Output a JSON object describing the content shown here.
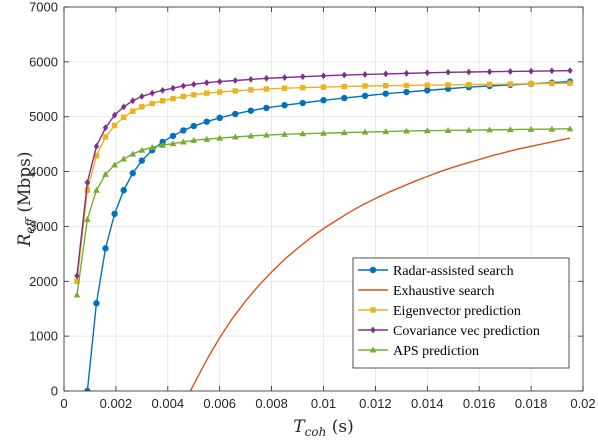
{
  "chart_data": {
    "type": "line",
    "xlabel": {
      "main": "T",
      "sub": "coh",
      "unit": " (s)"
    },
    "ylabel": {
      "main": "R",
      "sub": "eff",
      "unit": " (Mbps)"
    },
    "xlim": [
      0,
      0.02
    ],
    "ylim": [
      0,
      7000
    ],
    "xticks": [
      0,
      0.002,
      0.004,
      0.006,
      0.008,
      0.01,
      0.012,
      0.014,
      0.016,
      0.018,
      0.02
    ],
    "xtick_labels": [
      "0",
      "0.002",
      "0.004",
      "0.006",
      "0.008",
      "0.01",
      "0.012",
      "0.014",
      "0.016",
      "0.018",
      "0.02"
    ],
    "yticks": [
      0,
      1000,
      2000,
      3000,
      4000,
      5000,
      6000,
      7000
    ],
    "ytick_labels": [
      "0",
      "1000",
      "2000",
      "3000",
      "4000",
      "5000",
      "6000",
      "7000"
    ],
    "grid": true,
    "legend_position": "lower-right",
    "series": [
      {
        "name": "Radar-assisted search",
        "color": "#0072BD",
        "marker": "circle",
        "x": [
          0.0009,
          0.00125,
          0.0016,
          0.00195,
          0.0023,
          0.00265,
          0.003,
          0.0034,
          0.0038,
          0.0042,
          0.0046,
          0.005,
          0.0055,
          0.006,
          0.0066,
          0.0072,
          0.0078,
          0.0085,
          0.0092,
          0.01,
          0.0108,
          0.0116,
          0.0124,
          0.0132,
          0.014,
          0.0148,
          0.0156,
          0.0164,
          0.0172,
          0.018,
          0.0188,
          0.0195
        ],
        "y": [
          0,
          1600,
          2600,
          3230,
          3660,
          3970,
          4200,
          4390,
          4540,
          4650,
          4750,
          4830,
          4910,
          4980,
          5050,
          5110,
          5160,
          5210,
          5250,
          5300,
          5340,
          5380,
          5420,
          5450,
          5480,
          5510,
          5540,
          5560,
          5580,
          5600,
          5620,
          5640
        ]
      },
      {
        "name": "Exhaustive search",
        "color": "#D95319",
        "marker": "none",
        "x": [
          0.00487,
          0.0052,
          0.0056,
          0.006,
          0.0065,
          0.007,
          0.0075,
          0.008,
          0.0085,
          0.009,
          0.0095,
          0.01,
          0.0105,
          0.011,
          0.0115,
          0.012,
          0.0125,
          0.013,
          0.0135,
          0.014,
          0.0145,
          0.015,
          0.0155,
          0.016,
          0.0165,
          0.017,
          0.0175,
          0.018,
          0.0185,
          0.019,
          0.0195
        ],
        "y": [
          0,
          300,
          650,
          970,
          1330,
          1640,
          1920,
          2170,
          2400,
          2600,
          2790,
          2960,
          3110,
          3260,
          3390,
          3510,
          3620,
          3720,
          3820,
          3910,
          4000,
          4080,
          4150,
          4220,
          4290,
          4350,
          4410,
          4460,
          4510,
          4560,
          4610
        ]
      },
      {
        "name": "Eigenvector prediction",
        "color": "#EDB120",
        "marker": "square",
        "x": [
          0.0005,
          0.0009,
          0.00125,
          0.0016,
          0.00195,
          0.0023,
          0.00265,
          0.003,
          0.0034,
          0.0038,
          0.0042,
          0.0046,
          0.005,
          0.0055,
          0.006,
          0.0066,
          0.0072,
          0.0078,
          0.0085,
          0.0092,
          0.01,
          0.0108,
          0.0116,
          0.0124,
          0.0132,
          0.014,
          0.0148,
          0.0156,
          0.0164,
          0.0172,
          0.018,
          0.0188,
          0.0195
        ],
        "y": [
          2000,
          3660,
          4290,
          4630,
          4840,
          4990,
          5100,
          5180,
          5240,
          5290,
          5330,
          5370,
          5400,
          5430,
          5450,
          5470,
          5490,
          5505,
          5520,
          5530,
          5540,
          5550,
          5560,
          5565,
          5570,
          5575,
          5580,
          5585,
          5590,
          5595,
          5600,
          5605,
          5610
        ]
      },
      {
        "name": "Covariance vec prediction",
        "color": "#7E2F8E",
        "marker": "diamond",
        "x": [
          0.0005,
          0.0009,
          0.00125,
          0.0016,
          0.00195,
          0.0023,
          0.00265,
          0.003,
          0.0034,
          0.0038,
          0.0042,
          0.0046,
          0.005,
          0.0055,
          0.006,
          0.0066,
          0.0072,
          0.0078,
          0.0085,
          0.0092,
          0.01,
          0.0108,
          0.0116,
          0.0124,
          0.0132,
          0.014,
          0.0148,
          0.0156,
          0.0164,
          0.0172,
          0.018,
          0.0188,
          0.0195
        ],
        "y": [
          2100,
          3800,
          4460,
          4800,
          5030,
          5180,
          5290,
          5370,
          5430,
          5480,
          5520,
          5560,
          5590,
          5620,
          5640,
          5660,
          5680,
          5700,
          5715,
          5730,
          5745,
          5760,
          5770,
          5780,
          5790,
          5800,
          5810,
          5815,
          5820,
          5825,
          5830,
          5835,
          5840
        ]
      },
      {
        "name": "APS prediction",
        "color": "#77AC30",
        "marker": "triangle",
        "x": [
          0.0005,
          0.0009,
          0.00125,
          0.0016,
          0.00195,
          0.0023,
          0.00265,
          0.003,
          0.0034,
          0.0038,
          0.0042,
          0.0046,
          0.005,
          0.0055,
          0.006,
          0.0066,
          0.0072,
          0.0078,
          0.0085,
          0.0092,
          0.01,
          0.0108,
          0.0116,
          0.0124,
          0.0132,
          0.014,
          0.0148,
          0.0156,
          0.0164,
          0.0172,
          0.018,
          0.0188,
          0.0195
        ],
        "y": [
          1750,
          3130,
          3660,
          3950,
          4120,
          4230,
          4320,
          4390,
          4440,
          4480,
          4510,
          4540,
          4570,
          4590,
          4610,
          4630,
          4650,
          4665,
          4680,
          4690,
          4700,
          4710,
          4720,
          4730,
          4740,
          4745,
          4750,
          4755,
          4760,
          4765,
          4770,
          4775,
          4780
        ]
      }
    ]
  }
}
